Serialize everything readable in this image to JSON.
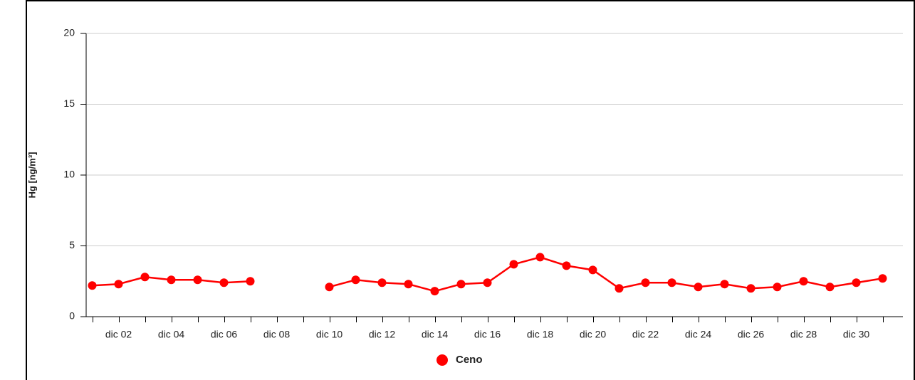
{
  "chart_data": {
    "type": "line",
    "y_label": "Hg [ng/m³]",
    "categories": [
      null,
      "dic 02",
      null,
      "dic 04",
      null,
      "dic 06",
      null,
      "dic 08",
      null,
      "dic 10",
      null,
      "dic 12",
      null,
      "dic 14",
      null,
      "dic 16",
      null,
      "dic 18",
      null,
      "dic 20",
      null,
      "dic 22",
      null,
      "dic 24",
      null,
      "dic 26",
      null,
      "dic 28",
      null,
      "dic 30",
      null
    ],
    "series": [
      {
        "name": "Ceno",
        "color": "#ff0000",
        "values": [
          2.2,
          2.3,
          2.8,
          2.6,
          2.6,
          2.4,
          2.5,
          null,
          null,
          2.1,
          2.6,
          2.4,
          2.3,
          1.8,
          2.3,
          2.4,
          3.7,
          4.2,
          3.6,
          3.3,
          2.0,
          2.4,
          2.4,
          2.1,
          2.3,
          2.0,
          2.1,
          2.5,
          2.1,
          2.4,
          2.7
        ]
      }
    ],
    "ylim": [
      0,
      20
    ],
    "yticks": [
      0,
      5,
      10,
      15,
      20
    ],
    "grid": true
  }
}
